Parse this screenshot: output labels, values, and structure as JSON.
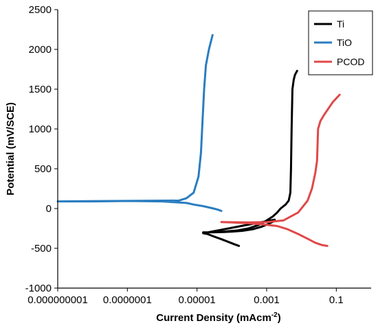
{
  "chart_data": {
    "type": "line",
    "xlabel": "Current Density (mAcm",
    "xlabel_sup": "-2",
    "xlabel_close": ")",
    "ylabel": "Potential (mV/SCE)",
    "x_scale": "log",
    "xlim": [
      1e-09,
      1
    ],
    "ylim": [
      -1000,
      2500
    ],
    "x_ticks": [
      1e-09,
      1e-07,
      1e-05,
      0.001,
      0.1
    ],
    "x_tick_labels": [
      "0.000000001",
      "0.0000001",
      "0.00001",
      "0.001",
      "0.1"
    ],
    "y_ticks": [
      -1000,
      -500,
      0,
      500,
      1000,
      1500,
      2000,
      2500
    ],
    "y_tick_labels": [
      "-1000",
      "-500",
      "0",
      "500",
      "1000",
      "1500",
      "2000",
      "2500"
    ],
    "grid": false,
    "legend_position": "top-right",
    "series": [
      {
        "name": "Ti",
        "color": "#000000",
        "x": [
          0.00016,
          0.00012,
          8e-05,
          5e-05,
          3e-05,
          2e-05,
          1.5e-05,
          1.5e-05,
          3e-05,
          6e-05,
          0.0001,
          0.0002,
          0.0004,
          0.0007,
          0.0011,
          0.0016,
          0.0017,
          2e-05,
          5e-05,
          0.00015,
          0.0003,
          0.0006,
          0.001,
          0.0015,
          0.002,
          0.0025,
          0.0035,
          0.0043,
          0.0048,
          0.005,
          0.0052,
          0.0055,
          0.006,
          0.0065,
          0.0075
        ],
        "y": [
          -470,
          -450,
          -420,
          -385,
          -350,
          -320,
          -310,
          -300,
          -298,
          -295,
          -290,
          -280,
          -260,
          -230,
          -195,
          -160,
          -140,
          -300,
          -292,
          -275,
          -250,
          -205,
          -150,
          -100,
          -50,
          0,
          50,
          100,
          200,
          500,
          1000,
          1500,
          1620,
          1680,
          1730
        ]
      },
      {
        "name": "TiO",
        "color": "#2a7dc0",
        "x": [
          5e-05,
          4e-05,
          3e-05,
          1.5e-05,
          8e-06,
          5e-06,
          1e-06,
          1e-07,
          1e-08,
          1e-09,
          3e-06,
          5e-06,
          8e-06,
          1.1e-05,
          1.3e-05,
          1.4e-05,
          1.6e-05,
          1.8e-05,
          2.2e-05,
          2.8e-05
        ],
        "y": [
          -30,
          -15,
          0,
          30,
          50,
          70,
          90,
          95,
          90,
          90,
          100,
          130,
          200,
          400,
          700,
          1000,
          1500,
          1800,
          2000,
          2180
        ]
      },
      {
        "name": "PCOD",
        "color": "#e04848",
        "x": [
          0.055,
          0.04,
          0.025,
          0.015,
          0.008,
          0.004,
          0.002,
          0.0008,
          0.0003,
          0.0001,
          5e-05,
          0.0003,
          0.001,
          0.003,
          0.008,
          0.015,
          0.02,
          0.025,
          0.028,
          0.03,
          0.035,
          0.045,
          0.06,
          0.08,
          0.125
        ],
        "y": [
          -470,
          -460,
          -430,
          -380,
          -320,
          -260,
          -220,
          -200,
          -185,
          -175,
          -170,
          -175,
          -170,
          -150,
          -50,
          100,
          250,
          450,
          600,
          1000,
          1100,
          1180,
          1260,
          1340,
          1430
        ]
      }
    ]
  }
}
